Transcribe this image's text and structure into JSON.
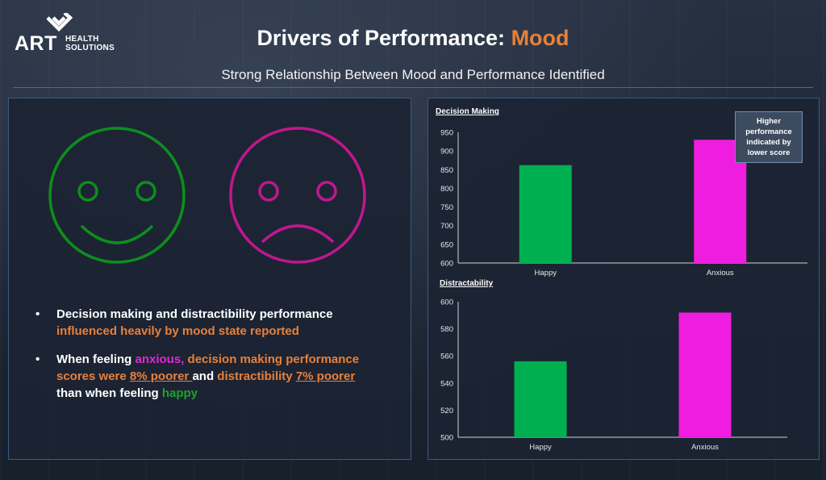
{
  "logo": {
    "brand": "ART",
    "line1": "HEALTH",
    "line2": "SOLUTIONS"
  },
  "header": {
    "title_main": "Drivers of Performance: ",
    "title_accent": "Mood",
    "subtitle": "Strong Relationship Between Mood and Performance Identified"
  },
  "colors": {
    "accent": "#e8803a",
    "happy": "#00b050",
    "anxious": "#ee1ddf",
    "happy_face": "#0c8f1c",
    "sad_face": "#c0178e",
    "border": "#3b5a82"
  },
  "icons": [
    "happy-face-icon",
    "sad-face-icon"
  ],
  "bullets": {
    "b1": {
      "p1": "Decision making and distractibility performance",
      "p2": "influenced heavily by mood state reported"
    },
    "b2": {
      "p1": "When feeling ",
      "p2": "anxious,",
      "p3": " decision making performance scores were ",
      "p4": "8% poorer ",
      "p5": "and ",
      "p6": "distractibility ",
      "p7": "7% poorer",
      "p8": " than when feeling ",
      "p9": "happy"
    }
  },
  "note": "Higher performance indicated by lower score",
  "chart_data": [
    {
      "type": "bar",
      "title": "Decision Making",
      "categories": [
        "Happy",
        "Anxious"
      ],
      "values": [
        862,
        930
      ],
      "ylim": [
        600,
        950
      ],
      "yticks": [
        600,
        650,
        700,
        750,
        800,
        850,
        900,
        950
      ],
      "colors": [
        "#00b050",
        "#ee1ddf"
      ],
      "grid": false
    },
    {
      "type": "bar",
      "title": "Distractability",
      "categories": [
        "Happy",
        "Anxious"
      ],
      "values": [
        556,
        592
      ],
      "ylim": [
        500,
        600
      ],
      "yticks": [
        500,
        520,
        540,
        560,
        580,
        600
      ],
      "colors": [
        "#00b050",
        "#ee1ddf"
      ],
      "grid": false
    }
  ]
}
